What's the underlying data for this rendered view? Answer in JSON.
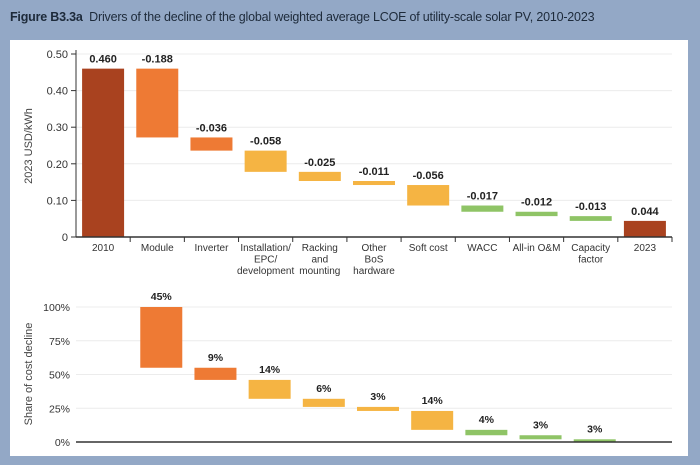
{
  "figure": {
    "label": "Figure B3.3a",
    "title": "Drivers of the decline of the global weighted average LCOE of utility-scale solar PV, 2010-2023"
  },
  "colors": {
    "total": "#a9421f",
    "module_inverter": "#ee7a34",
    "bos": "#f5b443",
    "finance_ops": "#8fc466",
    "background": "#93a8c6"
  },
  "chart_data": [
    {
      "type": "waterfall",
      "ylabel": "2023 USD/kWh",
      "ylim": [
        0,
        0.5
      ],
      "yticks": [
        "0",
        "0.10",
        "0.20",
        "0.30",
        "0.40",
        "0.50"
      ],
      "grid": true,
      "categories": [
        "2010",
        "Module",
        "Inverter",
        "Installation/\nEPC/\ndevelopment",
        "Racking\nand\nmounting",
        "Other\nBoS\nhardware",
        "Soft cost",
        "WACC",
        "All-in O&M",
        "Capacity\nfactor",
        "2023"
      ],
      "values": [
        0.46,
        -0.188,
        -0.036,
        -0.058,
        -0.025,
        -0.011,
        -0.056,
        -0.017,
        -0.012,
        -0.013,
        0.044
      ],
      "data_labels": [
        "0.460",
        "-0.188",
        "-0.036",
        "-0.058",
        "-0.025",
        "-0.011",
        "-0.056",
        "-0.017",
        "-0.012",
        "-0.013",
        "0.044"
      ],
      "bar_colors": [
        "total",
        "module_inverter",
        "module_inverter",
        "bos",
        "bos",
        "bos",
        "bos",
        "finance_ops",
        "finance_ops",
        "finance_ops",
        "total"
      ]
    },
    {
      "type": "waterfall",
      "ylabel": "Share of cost decline",
      "ylim": [
        0,
        100
      ],
      "yticks": [
        "0%",
        "25%",
        "50%",
        "75%",
        "100%"
      ],
      "grid": true,
      "values": [
        45,
        9,
        14,
        6,
        3,
        14,
        4,
        3,
        3
      ],
      "data_labels": [
        "45%",
        "9%",
        "14%",
        "6%",
        "3%",
        "14%",
        "4%",
        "3%",
        "3%"
      ],
      "bar_colors": [
        "module_inverter",
        "module_inverter",
        "bos",
        "bos",
        "bos",
        "bos",
        "finance_ops",
        "finance_ops",
        "finance_ops"
      ]
    }
  ]
}
